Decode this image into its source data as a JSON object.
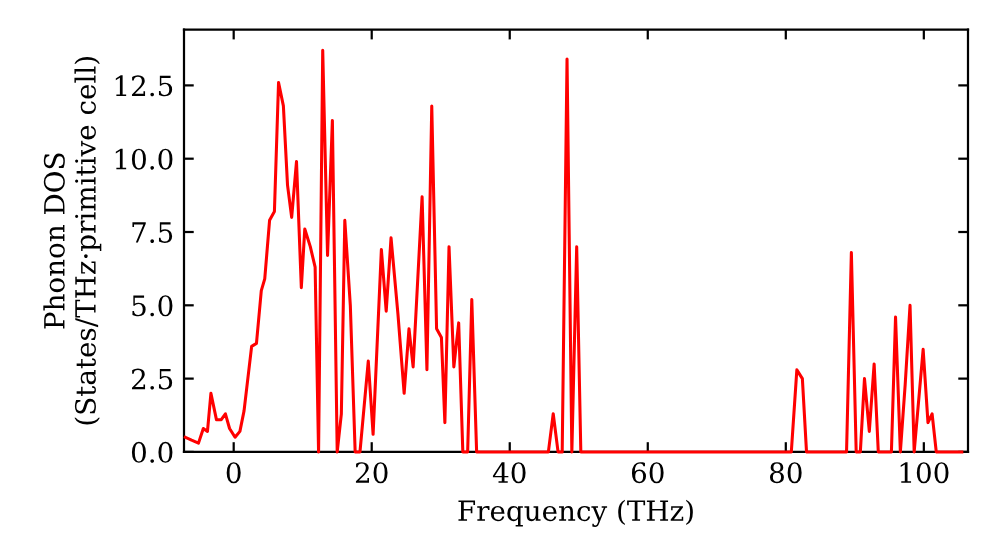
{
  "chart_data": {
    "type": "line",
    "xlabel": "Frequency (THz)",
    "ylabel": "Phonon DOS\n(States/THz·primitive cell)",
    "xlim": [
      -7.2,
      106.4
    ],
    "ylim": [
      0,
      14.4
    ],
    "xticks": [
      0,
      20,
      40,
      60,
      80,
      100
    ],
    "yticks": [
      {
        "value": 0,
        "label": "0.0"
      },
      {
        "value": 2.5,
        "label": "2.5"
      },
      {
        "value": 5,
        "label": "5.0"
      },
      {
        "value": 7.5,
        "label": "7.5"
      },
      {
        "value": 10,
        "label": "10.0"
      },
      {
        "value": 12.5,
        "label": "12.5"
      }
    ],
    "grid": false,
    "marker": "none",
    "line_style": "solid",
    "series": [
      {
        "color": "#ff0000",
        "x": [
          -7.0,
          -6.1,
          -5.1,
          -4.4,
          -3.8,
          -3.3,
          -2.5,
          -1.8,
          -1.2,
          -0.6,
          0.2,
          0.9,
          1.5,
          2.6,
          3.3,
          4.0,
          4.5,
          5.2,
          5.9,
          6.5,
          7.2,
          7.8,
          8.4,
          9.1,
          9.8,
          10.3,
          11.1,
          11.8,
          12.3,
          12.9,
          13.6,
          14.3,
          15.0,
          15.6,
          16.1,
          16.9,
          17.6,
          18.3,
          19.5,
          20.2,
          21.4,
          22.1,
          22.8,
          23.8,
          24.7,
          25.4,
          26.0,
          27.3,
          28.0,
          28.7,
          29.4,
          30.1,
          30.6,
          31.2,
          31.9,
          32.6,
          33.2,
          33.9,
          34.5,
          35.2,
          45.6,
          46.3,
          47.0,
          47.6,
          48.3,
          49.0,
          49.7,
          50.3,
          80.8,
          81.6,
          82.4,
          83.0,
          88.8,
          89.5,
          90.2,
          90.8,
          91.4,
          92.1,
          92.8,
          93.4,
          95.3,
          95.9,
          96.6,
          97.3,
          98.0,
          98.6,
          99.9,
          100.6,
          101.2,
          101.8,
          105.5
        ],
        "values": [
          0.5,
          0.4,
          0.3,
          0.8,
          0.7,
          2.0,
          1.1,
          1.1,
          1.3,
          0.8,
          0.5,
          0.7,
          1.4,
          3.6,
          3.7,
          5.5,
          5.9,
          7.9,
          8.2,
          12.6,
          11.8,
          9.1,
          8.0,
          9.9,
          5.6,
          7.6,
          7.0,
          6.3,
          0,
          13.7,
          6.7,
          11.3,
          0,
          1.3,
          7.9,
          5.0,
          0,
          0,
          3.1,
          0.6,
          6.9,
          4.8,
          7.3,
          4.7,
          2.0,
          4.2,
          2.9,
          8.7,
          2.8,
          11.8,
          4.2,
          3.9,
          1.0,
          7.0,
          2.9,
          4.4,
          0,
          0,
          5.2,
          0,
          0,
          1.3,
          0,
          0,
          13.4,
          0,
          7.0,
          0,
          0,
          2.8,
          2.5,
          0,
          0,
          6.8,
          0,
          0,
          2.5,
          0.7,
          3.0,
          0,
          0,
          4.6,
          0,
          2.3,
          5.0,
          0,
          3.5,
          1.0,
          1.3,
          0,
          0
        ]
      }
    ]
  }
}
